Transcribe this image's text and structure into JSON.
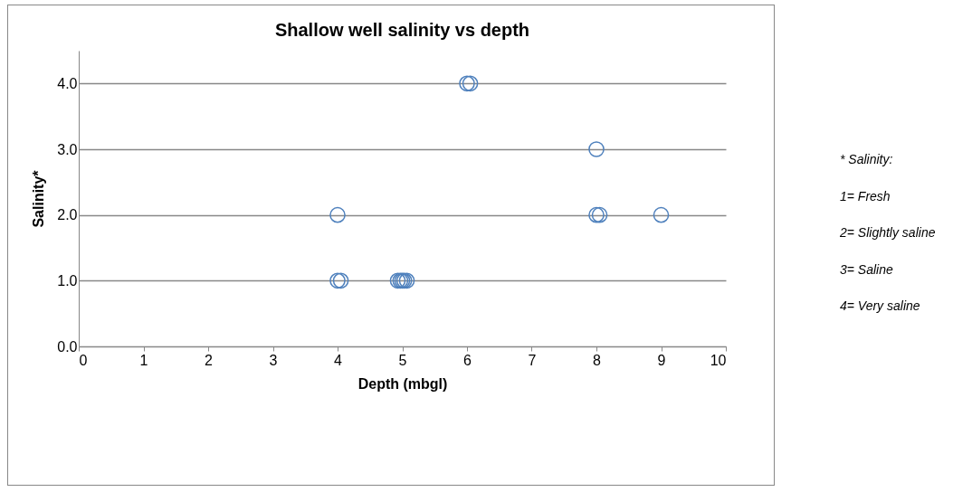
{
  "chart_data": {
    "type": "scatter",
    "title": "Shallow well salinity vs depth",
    "xlabel": "Depth (mbgl)",
    "ylabel": "Salinity*",
    "x": [
      6.0,
      6.05,
      8.0,
      4.0,
      8.0,
      8.05,
      9.0,
      4.0,
      4.05,
      4.93,
      4.97,
      5.0,
      5.03,
      5.07
    ],
    "series": [
      {
        "color": "#4f81bd",
        "values": [
          4,
          4,
          3,
          2,
          2,
          2,
          2,
          1,
          1,
          1,
          1,
          1,
          1,
          1
        ]
      }
    ],
    "xlim": [
      0,
      10
    ],
    "xticks": [
      0,
      1,
      2,
      3,
      4,
      5,
      6,
      7,
      8,
      9,
      10
    ],
    "ylim": [
      0,
      4.5
    ],
    "yticks": [
      {
        "value": 0,
        "label": "0.0"
      },
      {
        "value": 1,
        "label": "1.0"
      },
      {
        "value": 2,
        "label": "2.0"
      },
      {
        "value": 3,
        "label": "3.0"
      },
      {
        "value": 4,
        "label": "4.0"
      }
    ],
    "grid": "y",
    "marker": "circle",
    "legend": false,
    "annotations": [
      "* Salinity:",
      "1= Fresh",
      "2= Slightly saline",
      "3= Saline",
      "4= Very saline"
    ]
  }
}
